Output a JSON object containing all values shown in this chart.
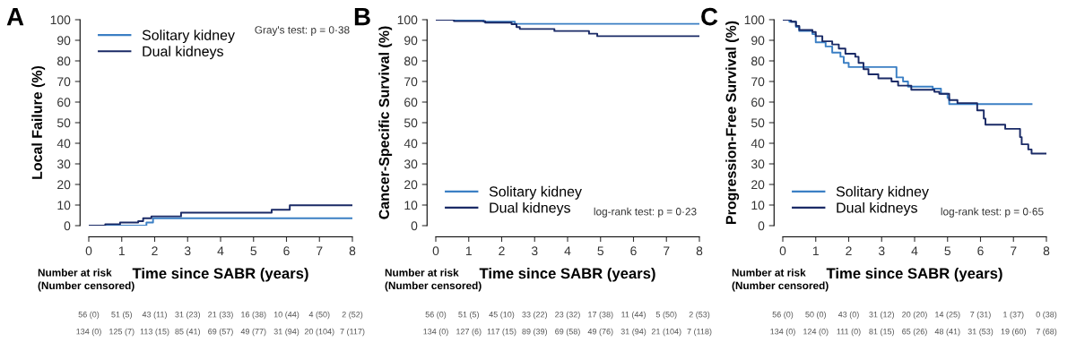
{
  "chart_data": [
    {
      "type": "step",
      "title": "A",
      "xlabel": "Time since SABR (years)",
      "ylabel": "Local Failure (%)",
      "xlim": [
        0,
        8
      ],
      "ylim": [
        0,
        100
      ],
      "xticks": [
        0,
        1,
        2,
        3,
        4,
        5,
        6,
        7,
        8
      ],
      "yticks": [
        0,
        10,
        20,
        30,
        40,
        50,
        60,
        70,
        80,
        90,
        100
      ],
      "legend": "top left",
      "grid": false,
      "series": [
        {
          "name": "Solitary kidney",
          "color": "#3b7fc4",
          "x": [
            0,
            1.75,
            1.95,
            8
          ],
          "values": [
            0,
            1.5,
            3.6,
            3.6
          ]
        },
        {
          "name": "Dual kidneys",
          "color": "#1a2a66",
          "x": [
            0,
            0.5,
            0.95,
            1.5,
            1.65,
            1.9,
            2.8,
            5.55,
            6.1,
            8
          ],
          "values": [
            0,
            0.7,
            1.5,
            2.2,
            3.6,
            4.5,
            6.3,
            7.7,
            9.9,
            9.9
          ]
        }
      ],
      "annotations": [
        "Gray's test: p = 0·38",
        "Number at risk\n(Number censored)",
        "56 (0)",
        "51 (5)",
        "43 (11)",
        "31 (23)",
        "21 (33)",
        "16 (38)",
        "10 (44)",
        "4 (50)",
        "2 (52)",
        "134 (0)",
        "125 (7)",
        "113 (15)",
        "85 (41)",
        "69 (57)",
        "49 (77)",
        "31 (94)",
        "20 (104)",
        "7 (117)"
      ]
    },
    {
      "type": "step",
      "title": "B",
      "xlabel": "Time since SABR (years)",
      "ylabel": "Cancer-Specific Survival (%)",
      "xlim": [
        0,
        8
      ],
      "ylim": [
        0,
        100
      ],
      "xticks": [
        0,
        1,
        2,
        3,
        4,
        5,
        6,
        7,
        8
      ],
      "yticks": [
        0,
        10,
        20,
        30,
        40,
        50,
        60,
        70,
        80,
        90,
        100
      ],
      "legend": "bottom left",
      "grid": false,
      "series": [
        {
          "name": "Solitary kidney",
          "color": "#3b7fc4",
          "x": [
            0,
            1.45,
            2.4,
            8
          ],
          "values": [
            100,
            99,
            98,
            98
          ]
        },
        {
          "name": "Dual kidneys",
          "color": "#1a2a66",
          "x": [
            0,
            0.55,
            1.5,
            2.3,
            2.45,
            2.55,
            3.6,
            4.65,
            4.9,
            8
          ],
          "values": [
            100,
            99.3,
            98.6,
            97.8,
            96.4,
            95.5,
            94.5,
            93.2,
            92,
            92
          ]
        }
      ],
      "annotations": [
        "log-rank test: p = 0·23",
        "Number at risk\n(Number censored)",
        "56 (0)",
        "51 (5)",
        "45 (10)",
        "33 (22)",
        "23 (32)",
        "17 (38)",
        "11 (44)",
        "5 (50)",
        "2 (53)",
        "134 (0)",
        "127 (6)",
        "117 (15)",
        "89 (39)",
        "69 (58)",
        "49 (76)",
        "31 (94)",
        "21 (104)",
        "7 (118)"
      ]
    },
    {
      "type": "step",
      "title": "C",
      "xlabel": "Time since SABR (years)",
      "ylabel": "Progression-Free Survival (%)",
      "xlim": [
        0,
        8
      ],
      "ylim": [
        0,
        100
      ],
      "xticks": [
        0,
        1,
        2,
        3,
        4,
        5,
        6,
        7,
        8
      ],
      "yticks": [
        0,
        10,
        20,
        30,
        40,
        50,
        60,
        70,
        80,
        90,
        100
      ],
      "legend": "bottom left",
      "grid": false,
      "series": [
        {
          "name": "Solitary kidney",
          "color": "#3b7fc4",
          "x": [
            0,
            0.2,
            0.4,
            0.5,
            0.9,
            1.0,
            1.3,
            1.5,
            1.75,
            1.85,
            2.0,
            3.45,
            3.65,
            3.8,
            4.55,
            4.8,
            5.0,
            5.05,
            7.55
          ],
          "values": [
            100,
            99,
            96.5,
            94.5,
            93,
            89,
            87,
            84,
            82,
            79,
            77,
            72,
            70,
            67.5,
            66.5,
            64,
            62,
            59,
            59
          ]
        },
        {
          "name": "Dual kidneys",
          "color": "#1a2a66",
          "x": [
            0,
            0.25,
            0.4,
            0.5,
            0.9,
            1.0,
            1.2,
            1.5,
            1.7,
            1.9,
            2.2,
            2.3,
            2.45,
            2.6,
            2.9,
            3.3,
            3.5,
            3.9,
            4.6,
            4.75,
            5.05,
            5.3,
            5.9,
            6.1,
            6.15,
            6.75,
            7.2,
            7.25,
            7.45,
            7.55,
            8
          ],
          "values": [
            100,
            99,
            97,
            95,
            94,
            92,
            89.5,
            88,
            86,
            83.5,
            82,
            79,
            76,
            73.5,
            71.5,
            70,
            68,
            66,
            65,
            64,
            61,
            59.5,
            56,
            52,
            49,
            47,
            43,
            39.5,
            37,
            35,
            35
          ]
        }
      ],
      "annotations": [
        "log-rank test: p = 0·65",
        "Number at risk\n(Number censored)",
        "56 (0)",
        "50 (0)",
        "43 (0)",
        "31 (12)",
        "20 (20)",
        "14 (25)",
        "7 (31)",
        "1 (37)",
        "0 (38)",
        "134 (0)",
        "124 (0)",
        "111 (0)",
        "81 (15)",
        "65 (26)",
        "48 (41)",
        "31 (53)",
        "19 (60)",
        "7 (68)"
      ]
    }
  ]
}
